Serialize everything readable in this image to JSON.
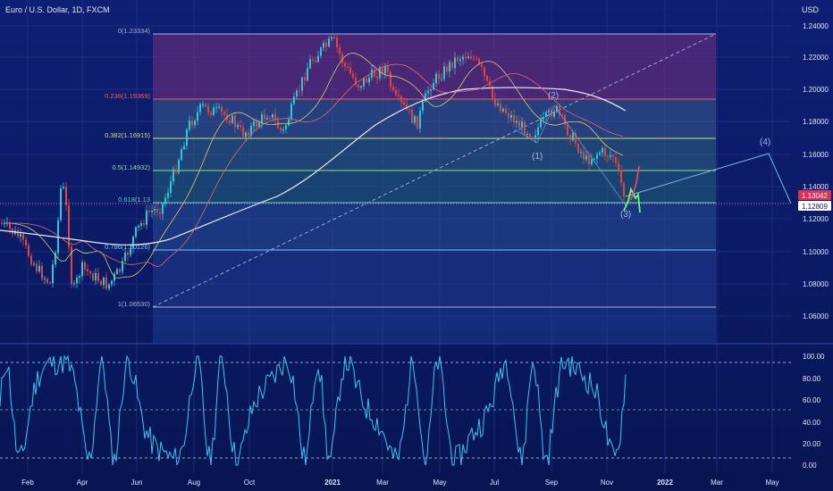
{
  "header": {
    "symbol": "Euro / U.S. Dollar, 1D, FXCM",
    "currency": "USD"
  },
  "price_axis": {
    "ticks": [
      "1.24000",
      "1.22000",
      "1.20000",
      "1.18000",
      "1.16000",
      "1.14000",
      "1.12000",
      "1.10000",
      "1.08000",
      "1.06000"
    ]
  },
  "osc_axis": {
    "ticks": [
      "100.00",
      "80.00",
      "60.00",
      "40.00",
      "20.00",
      "0.00"
    ]
  },
  "time_axis": {
    "labels": [
      "Feb",
      "Apr",
      "Jun",
      "Aug",
      "Oct",
      "2021",
      "Mar",
      "May",
      "Jul",
      "Sep",
      "Nov",
      "2022",
      "Mar",
      "May"
    ]
  },
  "fib_levels": [
    {
      "label": "0(1.23334)",
      "color": "#a6b0d6"
    },
    {
      "label": "0.236(1.19369)",
      "color": "#ff5a5a"
    },
    {
      "label": "0.382(1.16915)",
      "color": "#c9e06a"
    },
    {
      "label": "0.5(1.14932)",
      "color": "#8fe08f"
    },
    {
      "label": "0.618(1.13",
      "color": "#5ad0c8"
    },
    {
      "label": "0.786(1.10126)",
      "color": "#79c7ff"
    },
    {
      "label": "1(1.06530)",
      "color": "#a6b0d6"
    }
  ],
  "wave_labels": [
    "(1)",
    "(2)",
    "(3)",
    "(4)"
  ],
  "price_badges": {
    "upper": "1.13042",
    "lower": "1.12809"
  },
  "colors": {
    "background": "#0b1a66",
    "oscillator": "#38c8f0",
    "up": "#2fc6d8",
    "down": "#e0463f"
  }
}
